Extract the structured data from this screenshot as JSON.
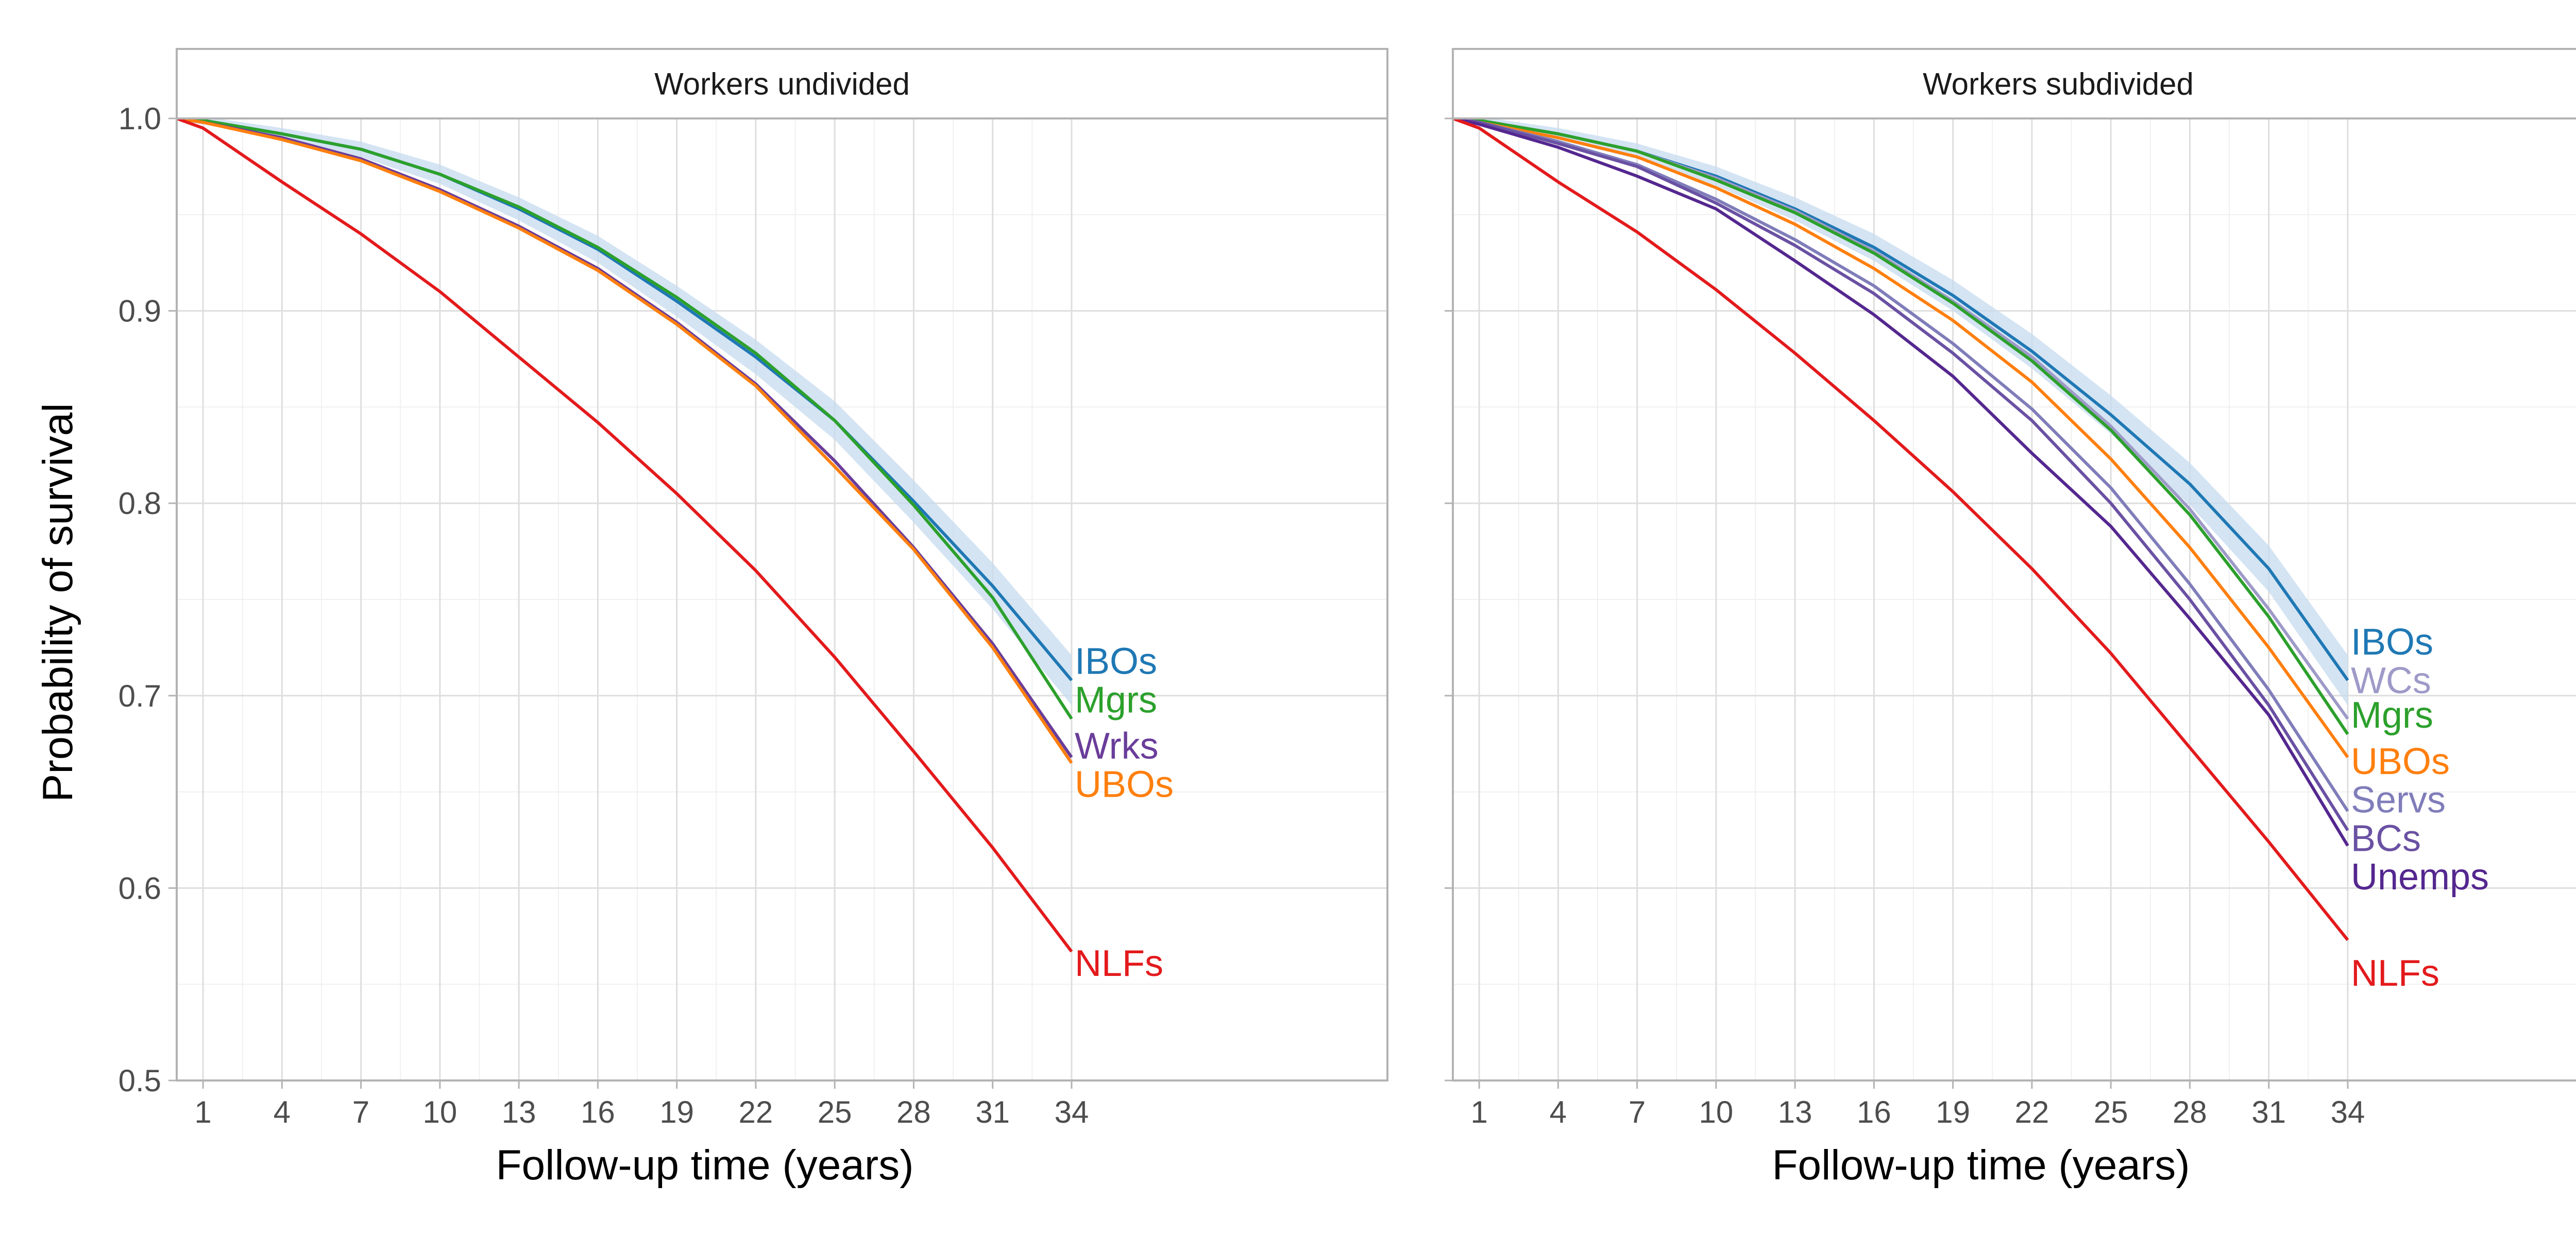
{
  "figure": {
    "ylabel": "Probability of survival",
    "xlabel": "Follow-up time (years)"
  },
  "colors": {
    "IBOs": "#1f78b4",
    "Mgrs": "#2ca02c",
    "Wrks": "#6a3d9a",
    "UBOs": "#ff7f0e",
    "NLFs": "#e31a1c",
    "WCs": "#9e9ac8",
    "Servs": "#807dba",
    "BCs": "#6a51a3",
    "Unemps": "#54278f",
    "ribbon_IBOs": "#c6dbef"
  },
  "chart_data": [
    {
      "type": "line",
      "panel": "Workers undivided",
      "xlabel": "Follow-up time (years)",
      "ylabel": "Probability of survival",
      "xlim": [
        0,
        46
      ],
      "ylim": [
        0.5,
        1.0
      ],
      "x_ticks": [
        1,
        4,
        7,
        10,
        13,
        16,
        19,
        22,
        25,
        28,
        31,
        34
      ],
      "y_ticks": [
        0.5,
        0.6,
        0.7,
        0.8,
        0.9,
        1.0
      ],
      "y_tick_labels": [
        "0.5",
        "0.6",
        "0.7",
        "0.8",
        "0.9",
        "1.0"
      ],
      "grid": true,
      "x": [
        0,
        1,
        4,
        7,
        10,
        13,
        16,
        19,
        22,
        25,
        28,
        31,
        34
      ],
      "series": [
        {
          "name": "IBOs",
          "ribbon": true,
          "values": [
            1.0,
            0.999,
            0.992,
            0.984,
            0.971,
            0.953,
            0.932,
            0.905,
            0.876,
            0.843,
            0.801,
            0.757,
            0.708
          ]
        },
        {
          "name": "Mgrs",
          "values": [
            1.0,
            0.999,
            0.992,
            0.984,
            0.971,
            0.954,
            0.933,
            0.907,
            0.878,
            0.843,
            0.799,
            0.751,
            0.688
          ]
        },
        {
          "name": "Wrks",
          "values": [
            1.0,
            0.998,
            0.99,
            0.979,
            0.963,
            0.944,
            0.922,
            0.894,
            0.862,
            0.822,
            0.777,
            0.727,
            0.668
          ]
        },
        {
          "name": "UBOs",
          "values": [
            1.0,
            0.998,
            0.989,
            0.978,
            0.962,
            0.943,
            0.921,
            0.893,
            0.861,
            0.819,
            0.776,
            0.725,
            0.665
          ]
        },
        {
          "name": "NLFs",
          "values": [
            1.0,
            0.995,
            0.967,
            0.94,
            0.91,
            0.876,
            0.842,
            0.805,
            0.765,
            0.72,
            0.671,
            0.621,
            0.567
          ]
        }
      ]
    },
    {
      "type": "line",
      "panel": "Workers subdivided",
      "xlabel": "Follow-up time (years)",
      "ylabel": "Probability of survival",
      "xlim": [
        0,
        46
      ],
      "ylim": [
        0.5,
        1.0
      ],
      "x_ticks": [
        1,
        4,
        7,
        10,
        13,
        16,
        19,
        22,
        25,
        28,
        31,
        34
      ],
      "y_ticks": [
        0.5,
        0.6,
        0.7,
        0.8,
        0.9,
        1.0
      ],
      "grid": true,
      "x": [
        0,
        1,
        4,
        7,
        10,
        13,
        16,
        19,
        22,
        25,
        28,
        31,
        34
      ],
      "series": [
        {
          "name": "IBOs",
          "ribbon": true,
          "values": [
            1.0,
            0.999,
            0.992,
            0.983,
            0.97,
            0.953,
            0.933,
            0.908,
            0.879,
            0.846,
            0.81,
            0.766,
            0.708
          ]
        },
        {
          "name": "WCs",
          "values": [
            1.0,
            0.999,
            0.992,
            0.983,
            0.969,
            0.952,
            0.931,
            0.905,
            0.876,
            0.84,
            0.797,
            0.745,
            0.688
          ]
        },
        {
          "name": "Mgrs",
          "values": [
            1.0,
            0.999,
            0.992,
            0.983,
            0.968,
            0.951,
            0.93,
            0.904,
            0.874,
            0.838,
            0.794,
            0.741,
            0.68
          ]
        },
        {
          "name": "UBOs",
          "values": [
            1.0,
            0.998,
            0.99,
            0.98,
            0.964,
            0.945,
            0.922,
            0.895,
            0.863,
            0.823,
            0.777,
            0.725,
            0.668
          ]
        },
        {
          "name": "Servs",
          "values": [
            1.0,
            0.998,
            0.988,
            0.976,
            0.958,
            0.937,
            0.913,
            0.883,
            0.849,
            0.808,
            0.758,
            0.703,
            0.64
          ]
        },
        {
          "name": "BCs",
          "values": [
            1.0,
            0.998,
            0.987,
            0.975,
            0.956,
            0.934,
            0.909,
            0.878,
            0.843,
            0.8,
            0.75,
            0.695,
            0.63
          ]
        },
        {
          "name": "Unemps",
          "values": [
            1.0,
            0.997,
            0.985,
            0.97,
            0.953,
            0.926,
            0.898,
            0.866,
            0.826,
            0.788,
            0.74,
            0.69,
            0.622
          ]
        },
        {
          "name": "NLFs",
          "values": [
            1.0,
            0.995,
            0.967,
            0.941,
            0.911,
            0.878,
            0.843,
            0.806,
            0.766,
            0.722,
            0.673,
            0.624,
            0.573
          ]
        }
      ]
    }
  ]
}
